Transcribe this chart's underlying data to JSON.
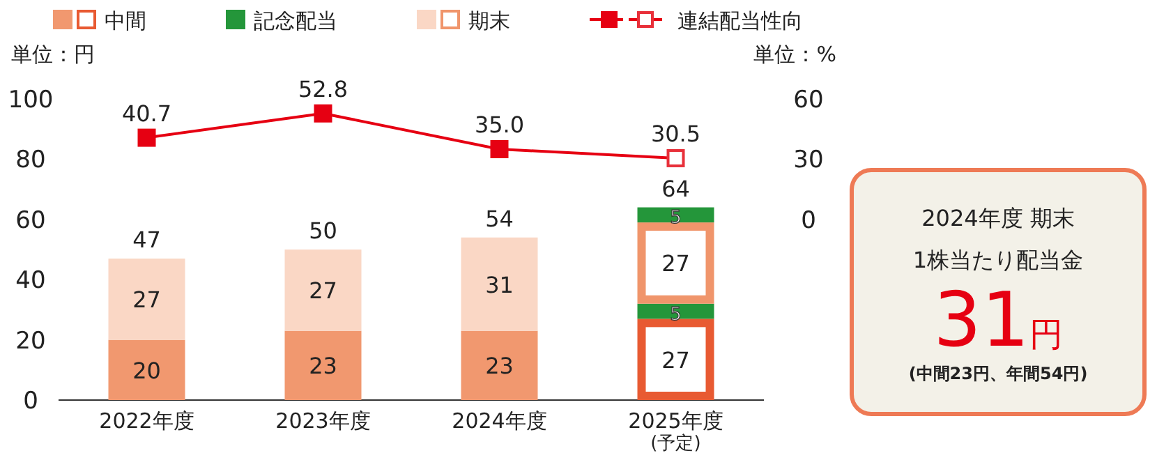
{
  "chart_data": [
    {
      "type": "bar",
      "stacked": true,
      "ylabel": "単位：円",
      "y2label": "単位：%",
      "categories": [
        "2022年度",
        "2023年度",
        "2024年度",
        "2025年度\n(予定)"
      ],
      "ylim": [
        0,
        100
      ],
      "yticks": [
        0,
        20,
        40,
        60,
        80,
        100
      ],
      "y2lim": [
        -90,
        60
      ],
      "y2ticks": [
        0,
        30,
        60
      ],
      "grid": false,
      "legend": "top",
      "data_labels": true,
      "totals": [
        "47",
        "50",
        "54",
        "64"
      ],
      "series": [
        {
          "name": "中間",
          "color": "#f1986f",
          "colors": [
            "#f1986f",
            "#f1986f",
            "#f1986f",
            "#e85a32"
          ],
          "values": [
            20,
            23,
            23,
            27
          ]
        },
        {
          "name": "記念配当",
          "color": "#24963a",
          "values": [
            null,
            null,
            null,
            5
          ]
        },
        {
          "name": "期末",
          "color": "#fad7c5",
          "colors": [
            "#fad7c5",
            "#fad7c5",
            "#fad7c5",
            "#f0956b"
          ],
          "values": [
            27,
            27,
            31,
            27
          ]
        },
        {
          "color": "#24963a",
          "values": [
            null,
            null,
            null,
            5
          ]
        },
        {
          "name": "連結配当性向",
          "type": "line",
          "axis": "y2",
          "color": "#e60012",
          "colors": [
            "#e60012",
            "#e60012",
            "#e60012",
            "#e8303a"
          ],
          "marker": "square",
          "values": [
            40.7,
            52.8,
            35.0,
            30.5
          ],
          "value_labels": [
            "40.7",
            "52.8",
            "35.0",
            "30.5"
          ]
        }
      ]
    },
    {
      "type": "other",
      "annotations": [
        "2024年度 期末",
        "1株当たり配当金",
        "31円",
        "(中間23円、年間54円)"
      ]
    }
  ]
}
